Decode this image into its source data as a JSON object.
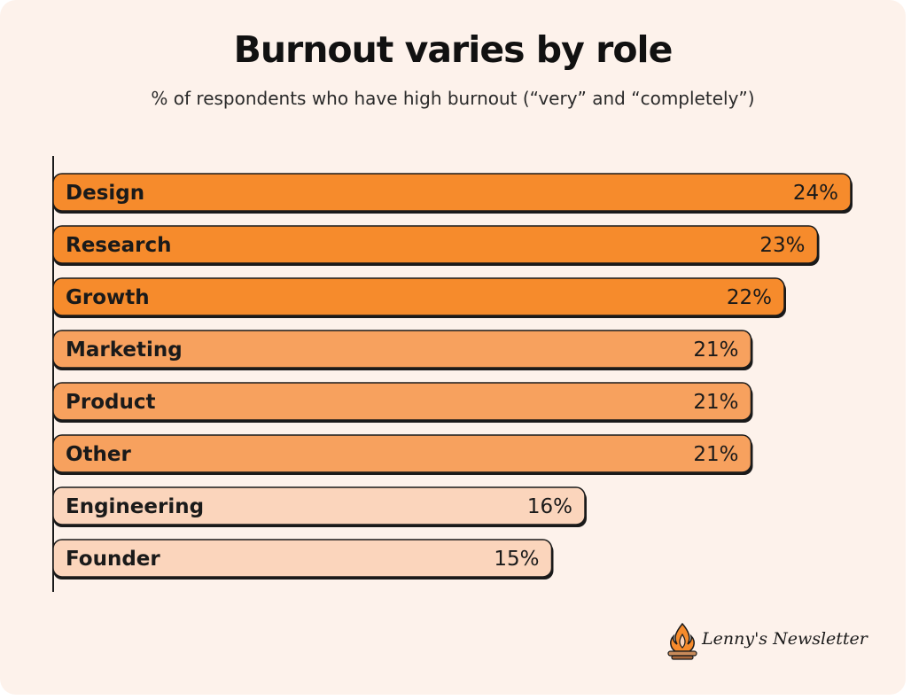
{
  "title": "Burnout varies by role",
  "subtitle": "% of respondents who have high burnout (“very” and “completely”)",
  "brand": "Lenny's Newsletter",
  "colors": {
    "background": "#fdf2eb",
    "bar_high": "#f68b2c",
    "bar_mid": "#f7a15e",
    "bar_low": "#fbd5bc",
    "outline": "#1a1a1a"
  },
  "chart_data": {
    "type": "bar",
    "orientation": "horizontal",
    "title": "Burnout varies by role",
    "subtitle": "% of respondents who have high burnout (“very” and “completely”)",
    "categories": [
      "Design",
      "Research",
      "Growth",
      "Marketing",
      "Product",
      "Other",
      "Engineering",
      "Founder"
    ],
    "values": [
      24,
      23,
      22,
      21,
      21,
      21,
      16,
      15
    ],
    "value_labels": [
      "24%",
      "23%",
      "22%",
      "21%",
      "21%",
      "21%",
      "16%",
      "15%"
    ],
    "tiers": [
      "high",
      "high",
      "high",
      "mid",
      "mid",
      "mid",
      "low",
      "low"
    ],
    "unit": "%",
    "xlim": [
      0,
      24
    ],
    "grid": false,
    "legend": "none"
  }
}
